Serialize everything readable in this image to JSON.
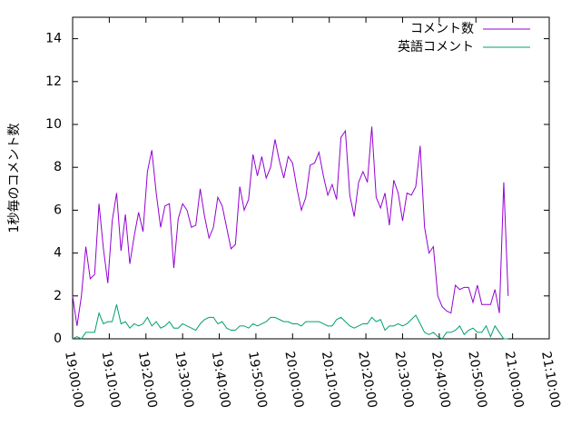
{
  "chart_data": {
    "type": "line",
    "y_label": "1秒毎のコメント数",
    "x": [
      "19:00:00",
      "19:01:12",
      "19:02:24",
      "19:03:36",
      "19:04:48",
      "19:06:00",
      "19:07:12",
      "19:08:24",
      "19:09:36",
      "19:10:48",
      "19:12:00",
      "19:13:12",
      "19:14:24",
      "19:15:36",
      "19:16:48",
      "19:18:00",
      "19:19:12",
      "19:20:24",
      "19:21:36",
      "19:22:48",
      "19:24:00",
      "19:25:12",
      "19:26:24",
      "19:27:36",
      "19:28:48",
      "19:30:00",
      "19:31:12",
      "19:32:24",
      "19:33:36",
      "19:34:48",
      "19:36:00",
      "19:37:12",
      "19:38:24",
      "19:39:36",
      "19:40:48",
      "19:42:00",
      "19:43:12",
      "19:44:24",
      "19:45:36",
      "19:46:48",
      "19:48:00",
      "19:49:12",
      "19:50:24",
      "19:51:36",
      "19:52:48",
      "19:54:00",
      "19:55:12",
      "19:56:24",
      "19:57:36",
      "19:58:48",
      "20:00:00",
      "20:01:12",
      "20:02:24",
      "20:03:36",
      "20:04:48",
      "20:06:00",
      "20:07:12",
      "20:08:24",
      "20:09:36",
      "20:10:48",
      "20:12:00",
      "20:13:12",
      "20:14:24",
      "20:15:36",
      "20:16:48",
      "20:18:00",
      "20:19:12",
      "20:20:24",
      "20:21:36",
      "20:22:48",
      "20:24:00",
      "20:25:12",
      "20:26:24",
      "20:27:36",
      "20:28:48",
      "20:30:00",
      "20:31:12",
      "20:32:24",
      "20:33:36",
      "20:34:48",
      "20:36:00",
      "20:37:12",
      "20:38:24",
      "20:39:36",
      "20:40:48",
      "20:42:00",
      "20:43:12",
      "20:44:24",
      "20:45:36",
      "20:46:48",
      "20:48:00",
      "20:49:12",
      "20:50:24",
      "20:51:36",
      "20:52:48",
      "20:54:00",
      "20:55:12",
      "20:56:24",
      "20:57:36",
      "20:58:48"
    ],
    "series": [
      {
        "name": "コメント数",
        "color": "#9400d3",
        "values": [
          2.0,
          0.6,
          2.0,
          4.3,
          2.8,
          3.0,
          6.3,
          4.2,
          2.6,
          5.5,
          6.8,
          4.1,
          5.8,
          3.5,
          4.8,
          5.9,
          5.0,
          7.8,
          8.8,
          6.8,
          5.2,
          6.2,
          6.3,
          3.3,
          5.6,
          6.3,
          6.0,
          5.2,
          5.3,
          7.0,
          5.7,
          4.7,
          5.2,
          6.6,
          6.2,
          5.2,
          4.2,
          4.4,
          7.1,
          6.0,
          6.5,
          8.6,
          7.6,
          8.5,
          7.5,
          8.0,
          9.3,
          8.3,
          7.5,
          8.5,
          8.2,
          7.0,
          6.0,
          6.6,
          8.1,
          8.2,
          8.7,
          7.6,
          6.7,
          7.2,
          6.5,
          9.4,
          9.7,
          6.7,
          5.7,
          7.3,
          7.8,
          7.3,
          9.9,
          6.6,
          6.1,
          6.8,
          5.3,
          7.4,
          6.8,
          5.5,
          6.8,
          6.7,
          7.1,
          9.0,
          5.2,
          4.0,
          4.3,
          2.0,
          1.5,
          1.3,
          1.2,
          2.5,
          2.3,
          2.4,
          2.4,
          1.7,
          2.5,
          1.6,
          1.6,
          1.6,
          2.3,
          1.2,
          7.3,
          2.0
        ]
      },
      {
        "name": "英語コメント",
        "color": "#009e73",
        "values": [
          0.0,
          0.1,
          0.0,
          0.3,
          0.3,
          0.3,
          1.2,
          0.7,
          0.8,
          0.8,
          1.6,
          0.7,
          0.8,
          0.5,
          0.7,
          0.6,
          0.7,
          1.0,
          0.6,
          0.8,
          0.5,
          0.6,
          0.8,
          0.5,
          0.5,
          0.7,
          0.6,
          0.5,
          0.4,
          0.7,
          0.9,
          1.0,
          1.0,
          0.7,
          0.8,
          0.5,
          0.4,
          0.4,
          0.6,
          0.6,
          0.5,
          0.7,
          0.6,
          0.7,
          0.8,
          1.0,
          1.0,
          0.9,
          0.8,
          0.8,
          0.7,
          0.7,
          0.6,
          0.8,
          0.8,
          0.8,
          0.8,
          0.7,
          0.6,
          0.6,
          0.9,
          1.0,
          0.8,
          0.6,
          0.5,
          0.6,
          0.7,
          0.7,
          1.0,
          0.8,
          0.9,
          0.4,
          0.6,
          0.6,
          0.7,
          0.6,
          0.7,
          0.9,
          1.1,
          0.7,
          0.3,
          0.2,
          0.3,
          0.1,
          0.0,
          0.3,
          0.3,
          0.4,
          0.6,
          0.2,
          0.4,
          0.5,
          0.3,
          0.3,
          0.6,
          0.1,
          0.6,
          0.3,
          0.0,
          0.0
        ]
      }
    ],
    "xlim": [
      "19:00:00",
      "21:10:00"
    ],
    "xticks": [
      "19:00:00",
      "19:10:00",
      "19:20:00",
      "19:30:00",
      "19:40:00",
      "19:50:00",
      "20:00:00",
      "20:10:00",
      "20:20:00",
      "20:30:00",
      "20:40:00",
      "20:50:00",
      "21:00:00",
      "21:10:00"
    ],
    "ylim": [
      0,
      15
    ],
    "yticks": [
      0,
      2,
      4,
      6,
      8,
      10,
      12,
      14
    ],
    "legend": "top-right"
  }
}
